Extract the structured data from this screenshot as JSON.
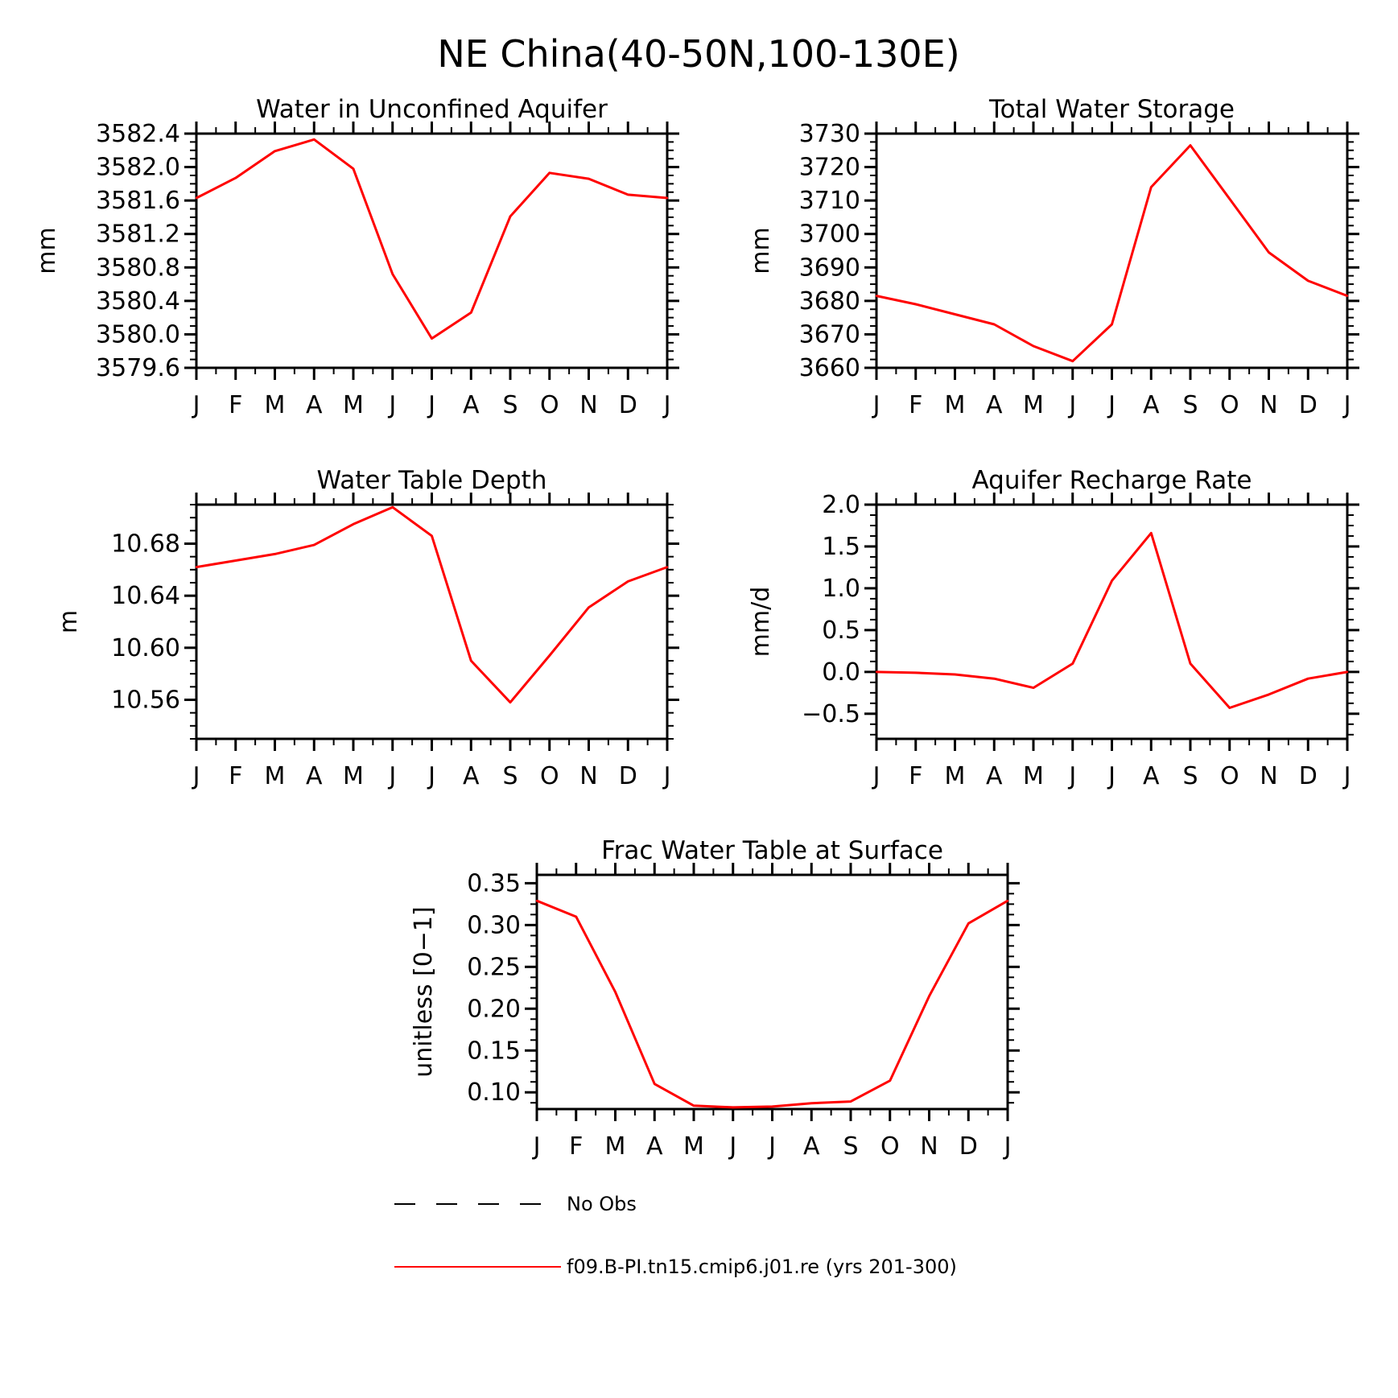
{
  "figure": {
    "title": "NE China(40-50N,100-130E)"
  },
  "legend": {
    "items": [
      {
        "label": "No Obs",
        "color": "#000000",
        "style": "dashed"
      },
      {
        "label": "f09.B-PI.tn15.cmip6.j01.re (yrs 201-300)",
        "color": "#ff0000",
        "style": "solid"
      }
    ]
  },
  "chart_data": [
    {
      "type": "line",
      "title": "Water in Unconfined Aquifer",
      "ylabel": "mm",
      "categories": [
        "J",
        "F",
        "M",
        "A",
        "M",
        "J",
        "J",
        "A",
        "S",
        "O",
        "N",
        "D",
        "J"
      ],
      "ylim": [
        3579.6,
        3582.4
      ],
      "yticks": [
        "3579.6",
        "3580.0",
        "3580.4",
        "3580.8",
        "3581.2",
        "3581.6",
        "3582.0",
        "3582.4"
      ],
      "series": [
        {
          "values": [
            3581.63,
            3581.87,
            3582.19,
            3582.33,
            3581.98,
            3580.72,
            3579.95,
            3580.26,
            3581.41,
            3581.93,
            3581.86,
            3581.67,
            3581.63
          ],
          "color": "#ff0000"
        }
      ]
    },
    {
      "type": "line",
      "title": "Total Water Storage",
      "ylabel": "mm",
      "categories": [
        "J",
        "F",
        "M",
        "A",
        "M",
        "J",
        "J",
        "A",
        "S",
        "O",
        "N",
        "D",
        "J"
      ],
      "ylim": [
        3660,
        3730
      ],
      "yticks": [
        "3660",
        "3670",
        "3680",
        "3690",
        "3700",
        "3710",
        "3720",
        "3730"
      ],
      "series": [
        {
          "values": [
            3681.5,
            3679.0,
            3676.0,
            3673.0,
            3666.5,
            3662.0,
            3673.0,
            3714.0,
            3726.5,
            3710.5,
            3694.5,
            3686.0,
            3681.5
          ],
          "color": "#ff0000"
        }
      ]
    },
    {
      "type": "line",
      "title": "Water Table Depth",
      "ylabel": "m",
      "categories": [
        "J",
        "F",
        "M",
        "A",
        "M",
        "J",
        "J",
        "A",
        "S",
        "O",
        "N",
        "D",
        "J"
      ],
      "ylim": [
        10.53,
        10.71
      ],
      "yticks": [
        "10.56",
        "10.60",
        "10.64",
        "10.68"
      ],
      "series": [
        {
          "values": [
            10.662,
            10.667,
            10.672,
            10.679,
            10.695,
            10.708,
            10.686,
            10.59,
            10.558,
            10.594,
            10.631,
            10.651,
            10.662
          ],
          "color": "#ff0000"
        }
      ]
    },
    {
      "type": "line",
      "title": "Aquifer Recharge Rate",
      "ylabel": "mm/d",
      "categories": [
        "J",
        "F",
        "M",
        "A",
        "M",
        "J",
        "J",
        "A",
        "S",
        "O",
        "N",
        "D",
        "J"
      ],
      "ylim": [
        -0.8,
        2.0
      ],
      "yticks": [
        "-0.5",
        "0.0",
        "0.5",
        "1.0",
        "1.5",
        "2.0"
      ],
      "series": [
        {
          "values": [
            0.0,
            -0.01,
            -0.03,
            -0.08,
            -0.19,
            0.1,
            1.09,
            1.66,
            0.1,
            -0.43,
            -0.27,
            -0.08,
            0.0
          ],
          "color": "#ff0000"
        }
      ]
    },
    {
      "type": "line",
      "title": "Frac Water Table at Surface",
      "ylabel": "unitless [0-1]",
      "categories": [
        "J",
        "F",
        "M",
        "A",
        "M",
        "J",
        "J",
        "A",
        "S",
        "O",
        "N",
        "D",
        "J"
      ],
      "ylim": [
        0.08,
        0.36
      ],
      "yticks": [
        "0.10",
        "0.15",
        "0.20",
        "0.25",
        "0.30",
        "0.35"
      ],
      "series": [
        {
          "values": [
            0.329,
            0.31,
            0.22,
            0.11,
            0.084,
            0.082,
            0.083,
            0.087,
            0.089,
            0.114,
            0.215,
            0.302,
            0.329
          ],
          "color": "#ff0000"
        }
      ]
    }
  ]
}
